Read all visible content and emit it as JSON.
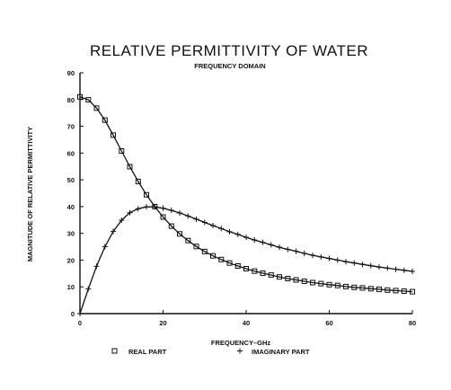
{
  "chart_data": {
    "type": "line",
    "title": "RELATIVE PERMITTIVITY OF WATER",
    "subtitle": "FREQUENCY DOMAIN",
    "xlabel": "FREQUENCY–GHz",
    "ylabel": "MAGNITUDE OF RELATIVE PERMITTIVITY",
    "xlim": [
      0,
      80
    ],
    "ylim": [
      0,
      90
    ],
    "x_ticks": [
      "0",
      "20",
      "40",
      "60",
      "80"
    ],
    "y_ticks": [
      "0",
      "10",
      "20",
      "30",
      "40",
      "50",
      "60",
      "70",
      "80",
      "90"
    ],
    "x_tick_values": [
      0,
      20,
      40,
      60,
      80
    ],
    "y_tick_values": [
      0,
      10,
      20,
      30,
      40,
      50,
      60,
      70,
      80,
      90
    ],
    "grid": false,
    "legend_position": "bottom",
    "legend": [
      {
        "label": "REAL PART",
        "marker": "square"
      },
      {
        "label": "IMAGINARY PART",
        "marker": "plus"
      }
    ],
    "series": [
      {
        "name": "REAL PART",
        "marker": "square",
        "x": [
          0,
          2,
          4,
          6,
          8,
          10,
          12,
          14,
          16,
          18,
          20,
          22,
          24,
          26,
          28,
          30,
          32,
          34,
          36,
          38,
          40,
          42,
          44,
          46,
          48,
          50,
          52,
          54,
          56,
          58,
          60,
          62,
          64,
          66,
          68,
          70,
          72,
          74,
          76,
          78,
          80
        ],
        "values": [
          81,
          79.9,
          76.8,
          72.3,
          66.7,
          60.8,
          54.9,
          49.4,
          44.4,
          40,
          36.1,
          32.7,
          29.8,
          27.3,
          25.1,
          23.2,
          21.6,
          20.2,
          18.9,
          17.8,
          16.8,
          15.9,
          15.1,
          14.4,
          13.7,
          13.1,
          12.6,
          12.1,
          11.6,
          11.2,
          10.8,
          10.5,
          10.1,
          9.8,
          9.6,
          9.3,
          9.1,
          8.8,
          8.6,
          8.4,
          8.2
        ]
      },
      {
        "name": "IMAGINARY PART",
        "marker": "plus",
        "x": [
          0,
          2,
          4,
          6,
          8,
          10,
          12,
          14,
          16,
          18,
          20,
          22,
          24,
          26,
          28,
          30,
          32,
          34,
          36,
          38,
          40,
          42,
          44,
          46,
          48,
          50,
          52,
          54,
          56,
          58,
          60,
          62,
          64,
          66,
          68,
          70,
          72,
          74,
          76,
          78,
          80
        ],
        "values": [
          0,
          9.2,
          17.7,
          25,
          30.7,
          34.9,
          37.7,
          39.2,
          39.9,
          39.9,
          39.4,
          38.6,
          37.6,
          36.5,
          35.3,
          34.1,
          32.9,
          31.8,
          30.6,
          29.6,
          28.5,
          27.5,
          26.6,
          25.7,
          24.8,
          24,
          23.3,
          22.5,
          21.8,
          21.2,
          20.6,
          20,
          19.4,
          18.9,
          18.4,
          17.9,
          17.4,
          17,
          16.6,
          16.2,
          15.8
        ]
      }
    ]
  }
}
